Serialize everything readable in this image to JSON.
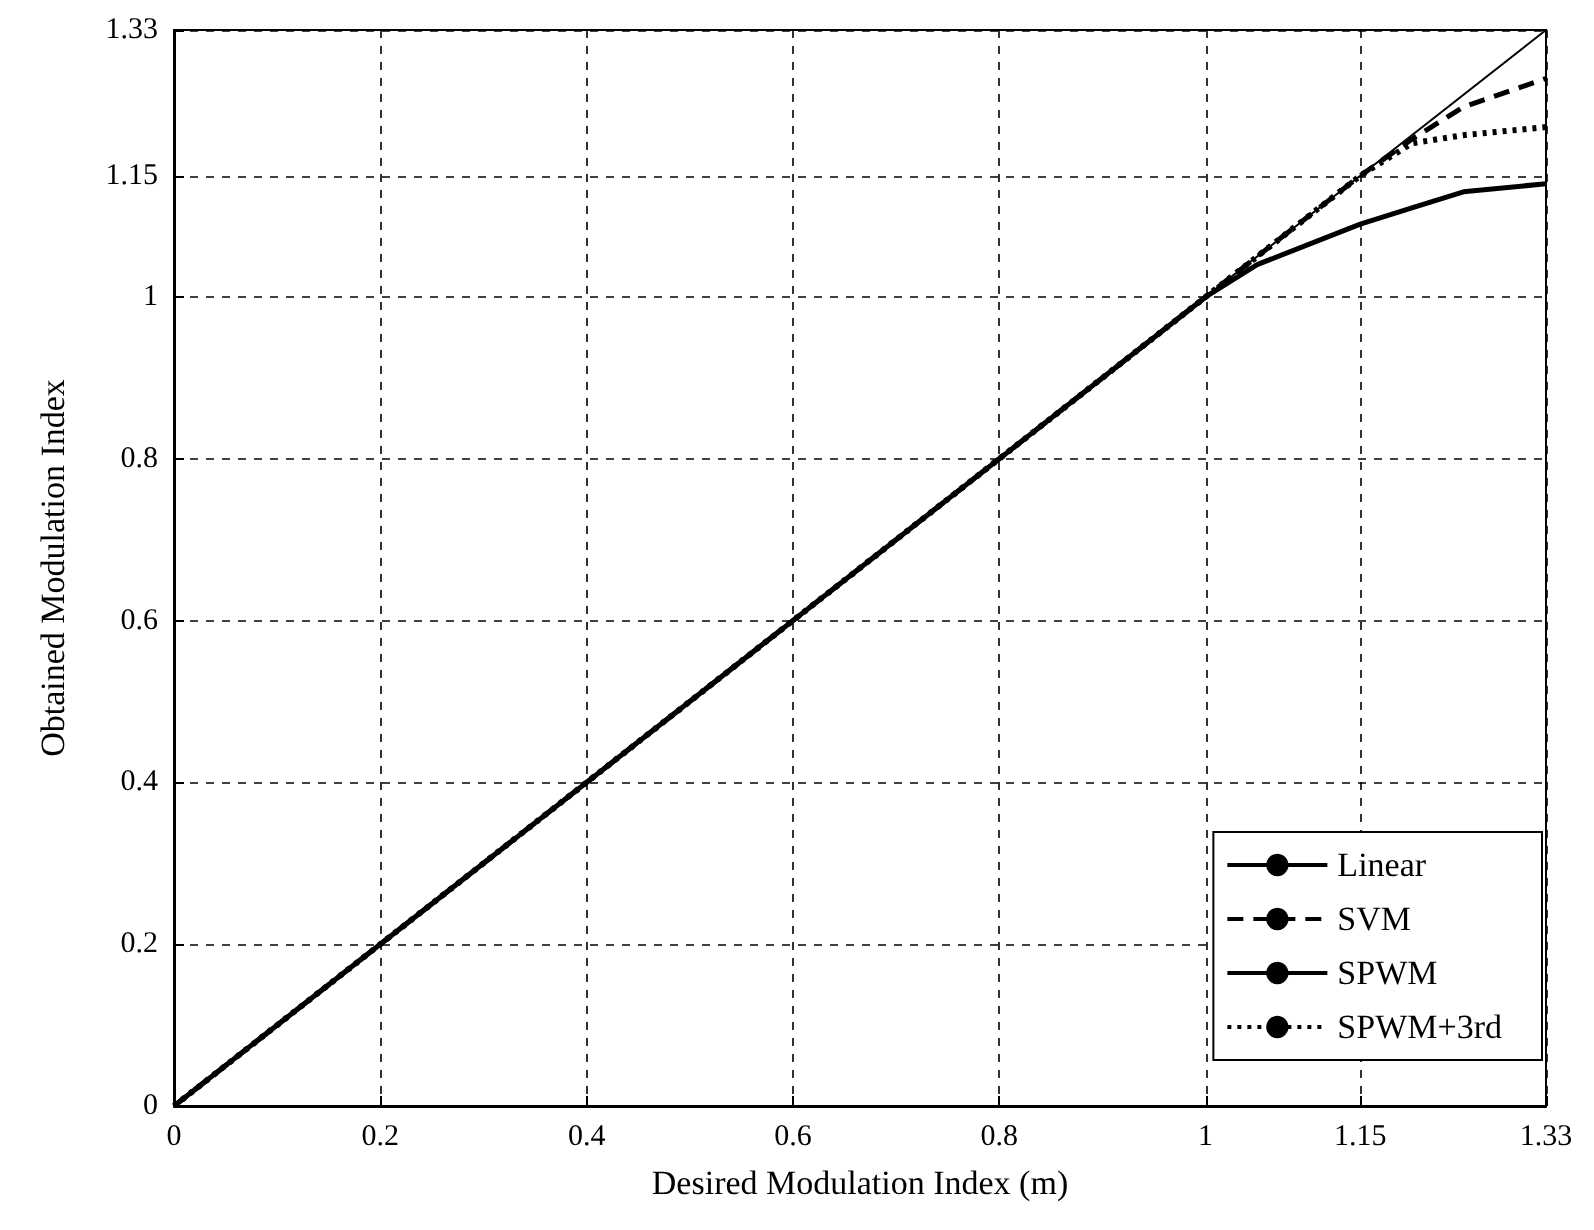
{
  "chart_data": {
    "type": "line",
    "xlabel": "Desired Modulation Index (m)",
    "ylabel": "Obtained Modulation Index",
    "xlim": [
      0,
      1.33
    ],
    "ylim": [
      0,
      1.33
    ],
    "xticks": [
      0,
      0.2,
      0.4,
      0.6,
      0.8,
      1,
      1.15,
      1.33
    ],
    "yticks": [
      0,
      0.2,
      0.4,
      0.6,
      0.8,
      1,
      1.15,
      1.33
    ],
    "grid": true,
    "legend": "bottom right",
    "marker": "none",
    "series": [
      {
        "name": "Linear",
        "color": "#000000",
        "line_style": "solid",
        "x": [
          0,
          1.33
        ],
        "values": [
          0,
          1.33
        ]
      },
      {
        "name": "SVM",
        "color": "#000000",
        "line_style": "dashed",
        "x": [
          0,
          1,
          1.15,
          1.2,
          1.25,
          1.33
        ],
        "values": [
          0,
          1,
          1.15,
          1.195,
          1.235,
          1.27
        ]
      },
      {
        "name": "SPWM",
        "color": "#000000",
        "line_style": "solid",
        "x": [
          0,
          1,
          1.05,
          1.15,
          1.2,
          1.25,
          1.33
        ],
        "values": [
          0,
          1,
          1.04,
          1.09,
          1.11,
          1.13,
          1.14
        ]
      },
      {
        "name": "SPWM+3rd",
        "color": "#000000",
        "line_style": "dotted",
        "x": [
          0,
          1,
          1.15,
          1.2,
          1.25,
          1.33
        ],
        "values": [
          0,
          1,
          1.15,
          1.19,
          1.2,
          1.21
        ]
      }
    ]
  }
}
